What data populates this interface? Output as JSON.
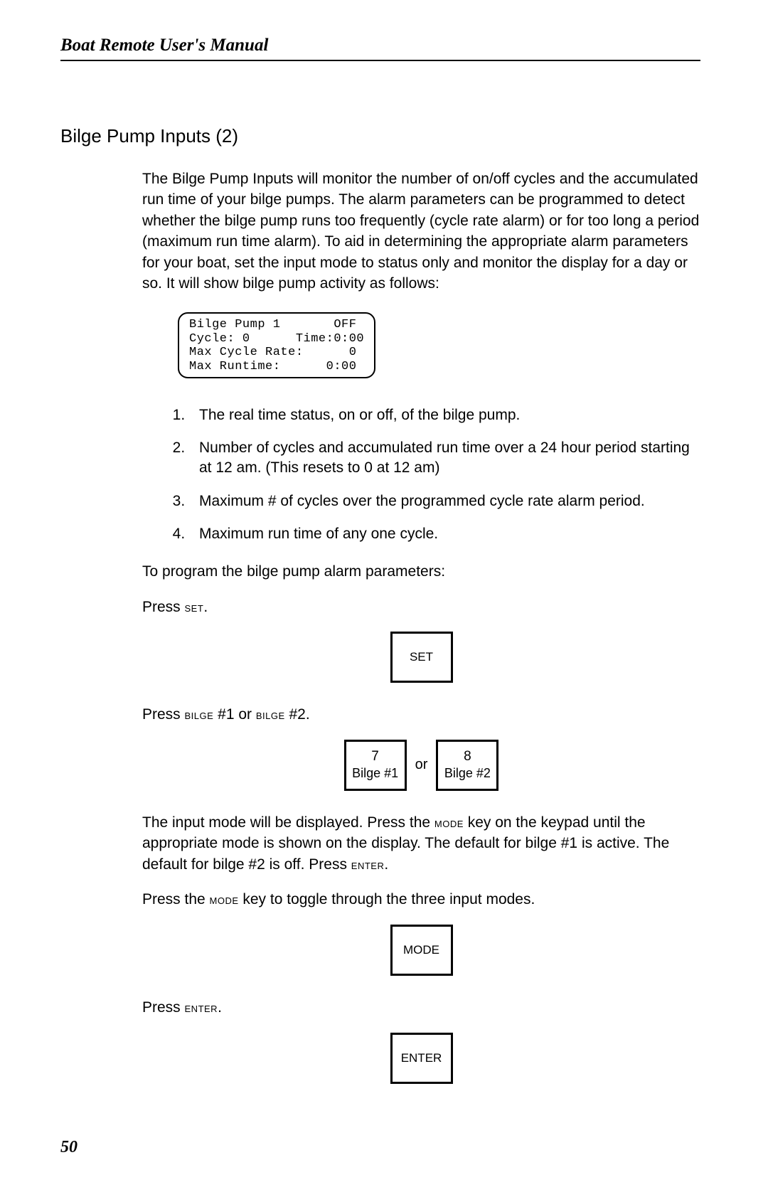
{
  "header": {
    "title": "Boat Remote User's Manual"
  },
  "section": {
    "title": "Bilge Pump Inputs (2)"
  },
  "intro_para": "The Bilge Pump Inputs will monitor the number of on/off cycles and the accumulated run time of your bilge pumps. The alarm parameters can be programmed to detect whether the bilge pump runs too frequently (cycle rate alarm) or for too long a period (maximum run time alarm). To aid in determining the appropriate alarm parameters for your boat, set the input mode to status only and monitor the display for a day or so. It will show bilge pump activity as follows:",
  "lcd": {
    "line1": "Bilge Pump 1       OFF",
    "line2": "Cycle: 0      Time:0:00",
    "line3": "Max Cycle Rate:      0",
    "line4": "Max Runtime:      0:00"
  },
  "list": {
    "i1": "The real time status, on or off, of the bilge pump.",
    "i2": "Number of cycles and accumulated run time over a 24 hour period starting at 12 am. (This resets to 0 at 12 am)",
    "i3": "Maximum # of cycles over the programmed cycle rate alarm period.",
    "i4": "Maximum run time of any one cycle."
  },
  "para_program": "To program the bilge pump alarm parameters:",
  "press_set_pre": "Press ",
  "press_set_key": "set",
  "press_set_post": ".",
  "keycap_set": "SET",
  "press_bilge_pre": "Press ",
  "press_bilge_k1": "bilge",
  "press_bilge_n1": " #1 or ",
  "press_bilge_k2": "bilge",
  "press_bilge_n2": " #2.",
  "key7_top": "7",
  "key7_bot": "Bilge #1",
  "or_label": "or",
  "key8_top": "8",
  "key8_bot": "Bilge #2",
  "mode_para_a": "The input mode will be displayed. Press the ",
  "mode_key1": "mode",
  "mode_para_b": " key on the keypad until the appropriate mode is shown on the display. The default for bilge #1 is active. The default for bilge #2 is off. Press ",
  "enter_key1": "enter",
  "mode_para_c": ".",
  "press_mode_line_a": "Press the ",
  "press_mode_key": "mode",
  "press_mode_line_b": " key to toggle through the three input modes.",
  "keycap_mode": "MODE",
  "press_enter_pre": "Press ",
  "press_enter_key": "enter",
  "press_enter_post": ".",
  "keycap_enter": "ENTER",
  "page_number": "50"
}
